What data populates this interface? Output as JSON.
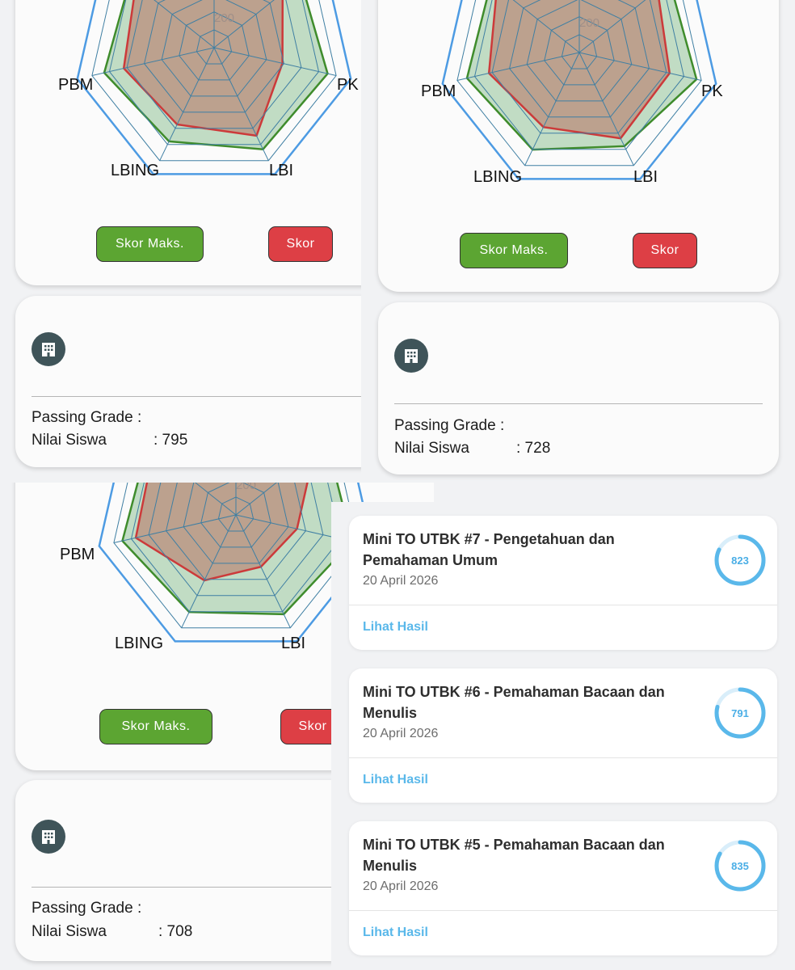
{
  "radar_panels": [
    {
      "axis_labels": {
        "pbm": "PBM",
        "pk": "PK",
        "lbing": "LBING",
        "lbi": "LBI"
      },
      "tick_label": "200",
      "legend": {
        "max_label": "Skor Maks.",
        "score_label": "Skor"
      },
      "info": {
        "passing_grade_label": "Passing Grade :",
        "nilai_siswa_label": "Nilai Siswa",
        "nilai_siswa_value": ": 795"
      }
    },
    {
      "axis_labels": {
        "pbm": "PBM",
        "pk": "PK",
        "lbing": "LBING",
        "lbi": "LBI"
      },
      "tick_label": "200",
      "legend": {
        "max_label": "Skor Maks.",
        "score_label": "Skor"
      },
      "info": {
        "passing_grade_label": "Passing Grade :",
        "nilai_siswa_label": "Nilai Siswa",
        "nilai_siswa_value": ": 728"
      }
    },
    {
      "axis_labels": {
        "pbm": "PBM",
        "lbing": "LBING",
        "lbi": "LBI"
      },
      "tick_label": "200",
      "legend": {
        "max_label": "Skor Maks.",
        "score_label": "Skor"
      },
      "info": {
        "passing_grade_label": "Passing Grade :",
        "nilai_siswa_label": "Nilai Siswa",
        "nilai_siswa_value": ": 708"
      }
    }
  ],
  "results": [
    {
      "title": "Mini TO UTBK #7 - Pengetahuan dan Pemahaman Umum",
      "date": "20 April 2026",
      "link": "Lihat Hasil",
      "score": "823",
      "progress": 0.823
    },
    {
      "title": "Mini TO UTBK #6 - Pemahaman Bacaan dan Menulis",
      "date": "20 April 2026",
      "link": "Lihat Hasil",
      "score": "791",
      "progress": 0.791
    },
    {
      "title": "Mini TO UTBK #5 - Pemahaman Bacaan dan Menulis",
      "date": "20 April 2026",
      "link": "Lihat Hasil",
      "score": "835",
      "progress": 0.835
    }
  ],
  "colors": {
    "grid": "#3f7fa3",
    "max_outline": "#4d9be3",
    "green_series": "#3f8c2c",
    "red_series": "#cc3a3a",
    "accent": "#5ab8ea"
  },
  "icons": {
    "institution": "building-icon"
  }
}
